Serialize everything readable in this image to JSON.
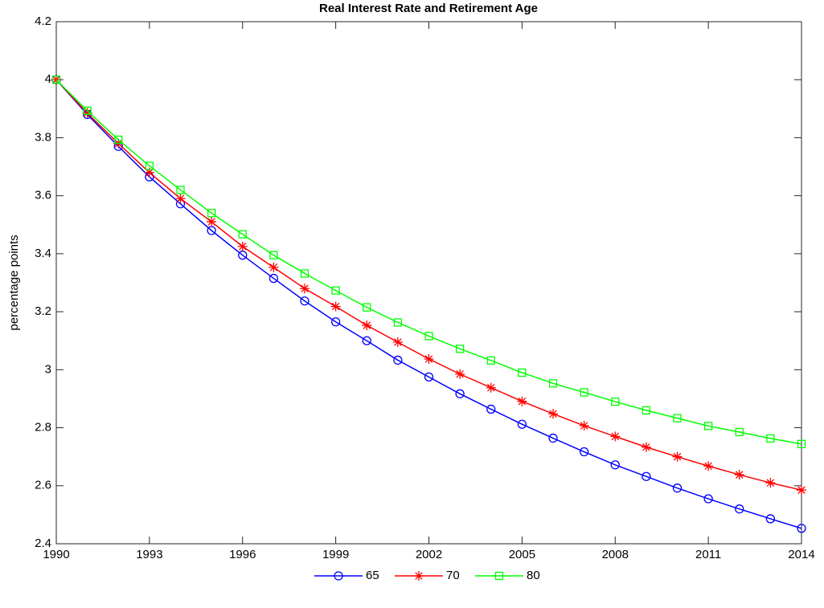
{
  "chart_data": {
    "type": "line",
    "title": "Real Interest Rate and Retirement Age",
    "ylabel": "percentage points",
    "x": [
      1990,
      1991,
      1992,
      1993,
      1994,
      1995,
      1996,
      1997,
      1998,
      1999,
      2000,
      2001,
      2002,
      2003,
      2004,
      2005,
      2006,
      2007,
      2008,
      2009,
      2010,
      2011,
      2012,
      2013,
      2014
    ],
    "series": [
      {
        "name": "65",
        "color": "#0000ff",
        "marker": "circle",
        "values": [
          4.0,
          3.88,
          3.77,
          3.665,
          3.572,
          3.48,
          3.395,
          3.315,
          3.237,
          3.165,
          3.1,
          3.033,
          2.975,
          2.917,
          2.864,
          2.812,
          2.764,
          2.717,
          2.672,
          2.632,
          2.592,
          2.555,
          2.52,
          2.486,
          2.453
        ]
      },
      {
        "name": "70",
        "color": "#ff0000",
        "marker": "asterisk",
        "values": [
          4.0,
          3.885,
          3.78,
          3.68,
          3.59,
          3.51,
          3.425,
          3.353,
          3.28,
          3.218,
          3.153,
          3.095,
          3.037,
          2.985,
          2.938,
          2.891,
          2.848,
          2.807,
          2.77,
          2.733,
          2.7,
          2.668,
          2.638,
          2.61,
          2.585
        ]
      },
      {
        "name": "80",
        "color": "#00ff00",
        "marker": "square",
        "values": [
          4.0,
          3.893,
          3.793,
          3.703,
          3.62,
          3.54,
          3.467,
          3.395,
          3.332,
          3.273,
          3.215,
          3.163,
          3.116,
          3.072,
          3.032,
          2.99,
          2.953,
          2.922,
          2.89,
          2.86,
          2.833,
          2.806,
          2.785,
          2.763,
          2.744
        ]
      }
    ],
    "xlim": [
      1990,
      2014
    ],
    "xticks": [
      1990,
      1993,
      1996,
      1999,
      2002,
      2005,
      2008,
      2011,
      2014
    ],
    "ylim": [
      2.4,
      4.2
    ],
    "yticks": [
      2.4,
      2.6,
      2.8,
      3,
      3.2,
      3.4,
      3.6,
      3.8,
      4,
      4.2
    ],
    "legend": "bottom"
  }
}
